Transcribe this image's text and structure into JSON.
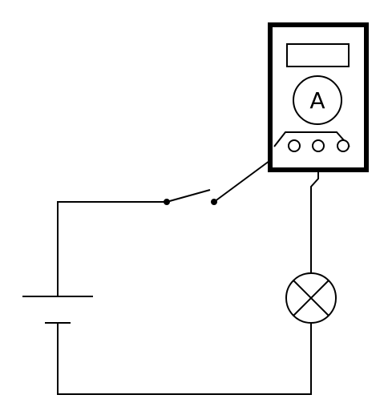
{
  "diagram": {
    "type": "circuit",
    "components": [
      {
        "kind": "battery"
      },
      {
        "kind": "switch",
        "state": "open"
      },
      {
        "kind": "ammeter",
        "symbol": "A"
      },
      {
        "kind": "lamp"
      }
    ]
  },
  "ammeter": {
    "symbol": "A",
    "terminals": 3,
    "connected_terminals": [
      "left",
      "middle"
    ]
  },
  "colors": {
    "line": "#000000",
    "background": "#ffffff"
  }
}
